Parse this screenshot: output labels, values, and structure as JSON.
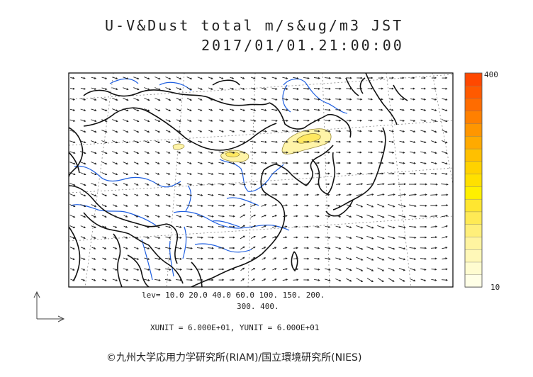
{
  "title": {
    "line1": "U-V&Dust total m/s&ug/m3 JST",
    "line2": "2017/01/01.21:00:00"
  },
  "levels": {
    "line1": "lev= 10.0 20.0 40.0 60.0 100. 150. 200.",
    "line2": "300. 400."
  },
  "units_text": "XUNIT = 6.000E+01, YUNIT = 6.000E+01",
  "copyright": "©九州大学応用力学研究所(RIAM)/国立環境研究所(NIES)",
  "colorbar": {
    "max_label": "400",
    "min_label": "10",
    "colors": [
      "#ffffe6",
      "#fffcd0",
      "#fff8b8",
      "#fff4a0",
      "#ffef7a",
      "#ffea55",
      "#ffe630",
      "#fff000",
      "#ffe000",
      "#ffd200",
      "#ffc000",
      "#ffaa00",
      "#ff9600",
      "#ff8000",
      "#ff6c00",
      "#ff5a00",
      "#ff4800"
    ]
  },
  "colors": {
    "coastline": "#111111",
    "rivers": "#1f5fe0",
    "vectors": "#222222",
    "dust_low": "#fff4a8",
    "dust_high": "#ffe860"
  }
}
